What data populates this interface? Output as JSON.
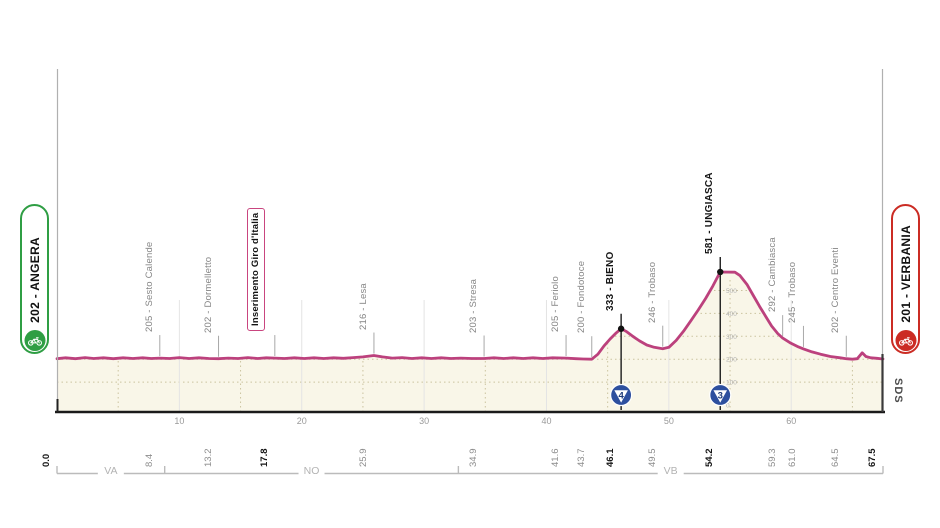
{
  "route": {
    "start": {
      "code_label": "202 - ANGERA",
      "accent": "#2f9e44"
    },
    "finish": {
      "code_label": "201 - VERBANIA",
      "accent": "#cb2c24"
    }
  },
  "branding": {
    "logo": "SDS"
  },
  "chart_data": {
    "type": "area",
    "xlabel_unit": "km",
    "x_range": [
      0,
      67.5
    ],
    "y_range": [
      0,
      600
    ],
    "grid": "dotted-100m",
    "x_axis_ticks": [
      10,
      20,
      30,
      40,
      50,
      60
    ],
    "elevation_scale_labels": [
      500,
      400,
      300,
      200,
      100,
      0
    ],
    "km_labels": [
      {
        "km": 0.0,
        "text": "0.0",
        "bold": true
      },
      {
        "km": 8.4,
        "text": "8.4",
        "bold": false
      },
      {
        "km": 13.2,
        "text": "13.2",
        "bold": false
      },
      {
        "km": 17.8,
        "text": "17.8",
        "bold": true
      },
      {
        "km": 25.9,
        "text": "25.9",
        "bold": false
      },
      {
        "km": 34.9,
        "text": "34.9",
        "bold": false
      },
      {
        "km": 41.6,
        "text": "41.6",
        "bold": false
      },
      {
        "km": 43.7,
        "text": "43.7",
        "bold": false
      },
      {
        "km": 46.1,
        "text": "46.1",
        "bold": true
      },
      {
        "km": 49.5,
        "text": "49.5",
        "bold": false
      },
      {
        "km": 54.2,
        "text": "54.2",
        "bold": true
      },
      {
        "km": 59.3,
        "text": "59.3",
        "bold": false
      },
      {
        "km": 61.0,
        "text": "61.0",
        "bold": false
      },
      {
        "km": 64.5,
        "text": "64.5",
        "bold": false
      },
      {
        "km": 67.5,
        "text": "67.5",
        "bold": true
      }
    ],
    "waypoints": [
      {
        "km": 8.4,
        "elev": 205,
        "label": "205 - Sesto Calende",
        "style": "normal"
      },
      {
        "km": 13.2,
        "elev": 202,
        "label": "202 - Dormelletto",
        "style": "normal"
      },
      {
        "km": 17.8,
        "elev": 205,
        "label": "Inserimento Giro d'Italia",
        "style": "boxed"
      },
      {
        "km": 25.9,
        "elev": 216,
        "label": "216 - Lesa",
        "style": "normal"
      },
      {
        "km": 34.9,
        "elev": 203,
        "label": "203 - Stresa",
        "style": "normal"
      },
      {
        "km": 41.6,
        "elev": 205,
        "label": "205 - Feriolo",
        "style": "normal"
      },
      {
        "km": 43.7,
        "elev": 200,
        "label": "200 - Fondotoce",
        "style": "normal"
      },
      {
        "km": 46.1,
        "elev": 333,
        "label": "333 - BIENO",
        "style": "summit"
      },
      {
        "km": 49.5,
        "elev": 246,
        "label": "246 - Trobaso",
        "style": "normal"
      },
      {
        "km": 54.2,
        "elev": 581,
        "label": "581 - UNGIASCA",
        "style": "summit"
      },
      {
        "km": 59.3,
        "elev": 292,
        "label": "292 - Cambiasca",
        "style": "normal"
      },
      {
        "km": 61.0,
        "elev": 245,
        "label": "245 - Trobaso",
        "style": "normal"
      },
      {
        "km": 64.5,
        "elev": 202,
        "label": "202 - Centro Eventi",
        "style": "normal"
      }
    ],
    "climb_markers": [
      {
        "km": 46.1,
        "category": "4"
      },
      {
        "km": 54.2,
        "category": "3"
      }
    ],
    "regions": [
      {
        "label": "VA",
        "from": 0,
        "to": 8.8
      },
      {
        "label": "NO",
        "from": 8.8,
        "to": 32.8
      },
      {
        "label": "VB",
        "from": 32.8,
        "to": 67.5
      }
    ],
    "profile_points": [
      [
        0,
        202
      ],
      [
        0.7,
        206
      ],
      [
        1.5,
        202
      ],
      [
        2.3,
        207
      ],
      [
        3,
        203
      ],
      [
        3.8,
        206
      ],
      [
        4.6,
        202
      ],
      [
        5.4,
        206
      ],
      [
        6.2,
        203
      ],
      [
        7,
        206
      ],
      [
        7.7,
        203
      ],
      [
        8.4,
        205
      ],
      [
        9.2,
        203
      ],
      [
        10,
        207
      ],
      [
        10.8,
        203
      ],
      [
        11.6,
        206
      ],
      [
        12.4,
        203
      ],
      [
        13.2,
        202
      ],
      [
        14,
        205
      ],
      [
        14.8,
        203
      ],
      [
        15.6,
        207
      ],
      [
        16.4,
        203
      ],
      [
        17.1,
        206
      ],
      [
        17.8,
        205
      ],
      [
        18.6,
        203
      ],
      [
        19.4,
        206
      ],
      [
        20.2,
        203
      ],
      [
        21,
        206
      ],
      [
        21.8,
        203
      ],
      [
        22.6,
        206
      ],
      [
        23.4,
        204
      ],
      [
        24.2,
        207
      ],
      [
        25,
        210
      ],
      [
        25.9,
        216
      ],
      [
        26.6,
        210
      ],
      [
        27.4,
        205
      ],
      [
        28.2,
        207
      ],
      [
        29,
        203
      ],
      [
        29.8,
        206
      ],
      [
        30.6,
        203
      ],
      [
        31.4,
        206
      ],
      [
        32.2,
        203
      ],
      [
        33,
        205
      ],
      [
        33.9,
        203
      ],
      [
        34.9,
        203
      ],
      [
        35.7,
        206
      ],
      [
        36.5,
        203
      ],
      [
        37.3,
        206
      ],
      [
        38.1,
        203
      ],
      [
        38.9,
        206
      ],
      [
        39.7,
        203
      ],
      [
        40.5,
        206
      ],
      [
        41.6,
        205
      ],
      [
        42.4,
        202
      ],
      [
        43,
        201
      ],
      [
        43.7,
        200
      ],
      [
        44.2,
        222
      ],
      [
        44.7,
        258
      ],
      [
        45.2,
        288
      ],
      [
        45.7,
        315
      ],
      [
        46.1,
        333
      ],
      [
        46.5,
        322
      ],
      [
        47,
        302
      ],
      [
        47.6,
        280
      ],
      [
        48.2,
        262
      ],
      [
        48.8,
        252
      ],
      [
        49.5,
        246
      ],
      [
        50,
        252
      ],
      [
        50.6,
        282
      ],
      [
        51.2,
        322
      ],
      [
        51.8,
        368
      ],
      [
        52.4,
        415
      ],
      [
        53,
        465
      ],
      [
        53.6,
        520
      ],
      [
        54.2,
        581
      ],
      [
        55.4,
        580
      ],
      [
        55.8,
        566
      ],
      [
        56.4,
        525
      ],
      [
        56.9,
        478
      ],
      [
        57.4,
        432
      ],
      [
        57.9,
        388
      ],
      [
        58.4,
        345
      ],
      [
        58.9,
        312
      ],
      [
        59.3,
        292
      ],
      [
        59.9,
        272
      ],
      [
        60.5,
        256
      ],
      [
        61,
        245
      ],
      [
        61.7,
        232
      ],
      [
        62.4,
        222
      ],
      [
        63.2,
        212
      ],
      [
        64,
        206
      ],
      [
        64.5,
        202
      ],
      [
        65,
        200
      ],
      [
        65.4,
        202
      ],
      [
        65.8,
        228
      ],
      [
        66.1,
        212
      ],
      [
        66.5,
        206
      ],
      [
        67,
        204
      ],
      [
        67.5,
        201
      ]
    ],
    "colors": {
      "line": "#bc417d",
      "fill": "#f9f6e8",
      "axis": "#1a1a1a",
      "grid_dotted": "#cbc39f",
      "grid_vertical": "#e4e4e4",
      "leader": "#a8a8a8",
      "summit_line": "#1c1c1c",
      "muted_text": "#9a9a9a",
      "region_text": "#b3b3b3",
      "marker_blue": "#2d4f9e",
      "marker_number": "#1d3a7a",
      "boxed_border": "#c9457f"
    }
  }
}
